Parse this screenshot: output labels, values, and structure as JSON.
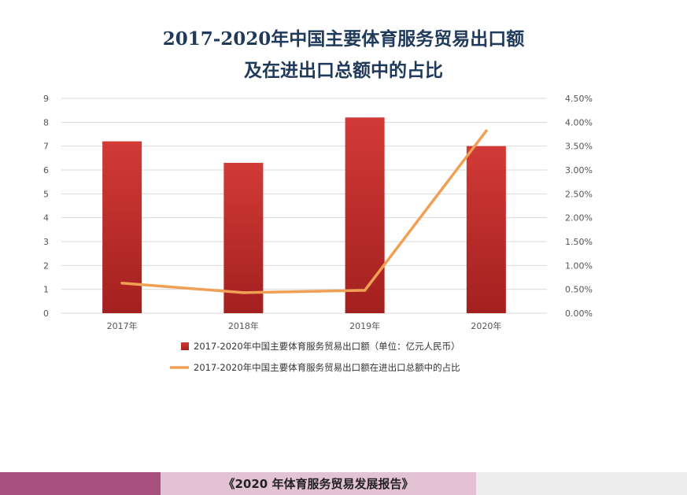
{
  "chart_data": {
    "type": "bar",
    "title_lines": [
      "2017-2020年中国主要体育服务贸易出口额",
      "及在进出口总额中的占比"
    ],
    "categories": [
      "2017年",
      "2018年",
      "2019年",
      "2020年"
    ],
    "series": [
      {
        "name": "2017-2020年中国主要体育服务贸易出口额（单位：亿元人民币）",
        "type": "bar",
        "axis": "left",
        "color": "#c0312f",
        "values": [
          7.2,
          6.3,
          8.2,
          7.0
        ]
      },
      {
        "name": "2017-2020年中国主要体育服务贸易出口额在进出口总额中的占比",
        "type": "line",
        "axis": "right",
        "color": "#f0a055",
        "values": [
          0.0063,
          0.0043,
          0.0048,
          0.0382
        ]
      }
    ],
    "y_left": {
      "range": [
        0,
        9
      ],
      "ticks": [
        "0",
        "1",
        "2",
        "3",
        "4",
        "5",
        "6",
        "7",
        "8",
        "9"
      ]
    },
    "y_right": {
      "range": [
        0,
        0.045
      ],
      "ticks": [
        "0.00%",
        "0.50%",
        "1.00%",
        "1.50%",
        "2.00%",
        "2.50%",
        "3.00%",
        "3.50%",
        "4.00%",
        "4.50%"
      ]
    },
    "grid": true,
    "legend": "bottom"
  },
  "footer": {
    "report": "《2020 年体育服务贸易发展报告》"
  }
}
